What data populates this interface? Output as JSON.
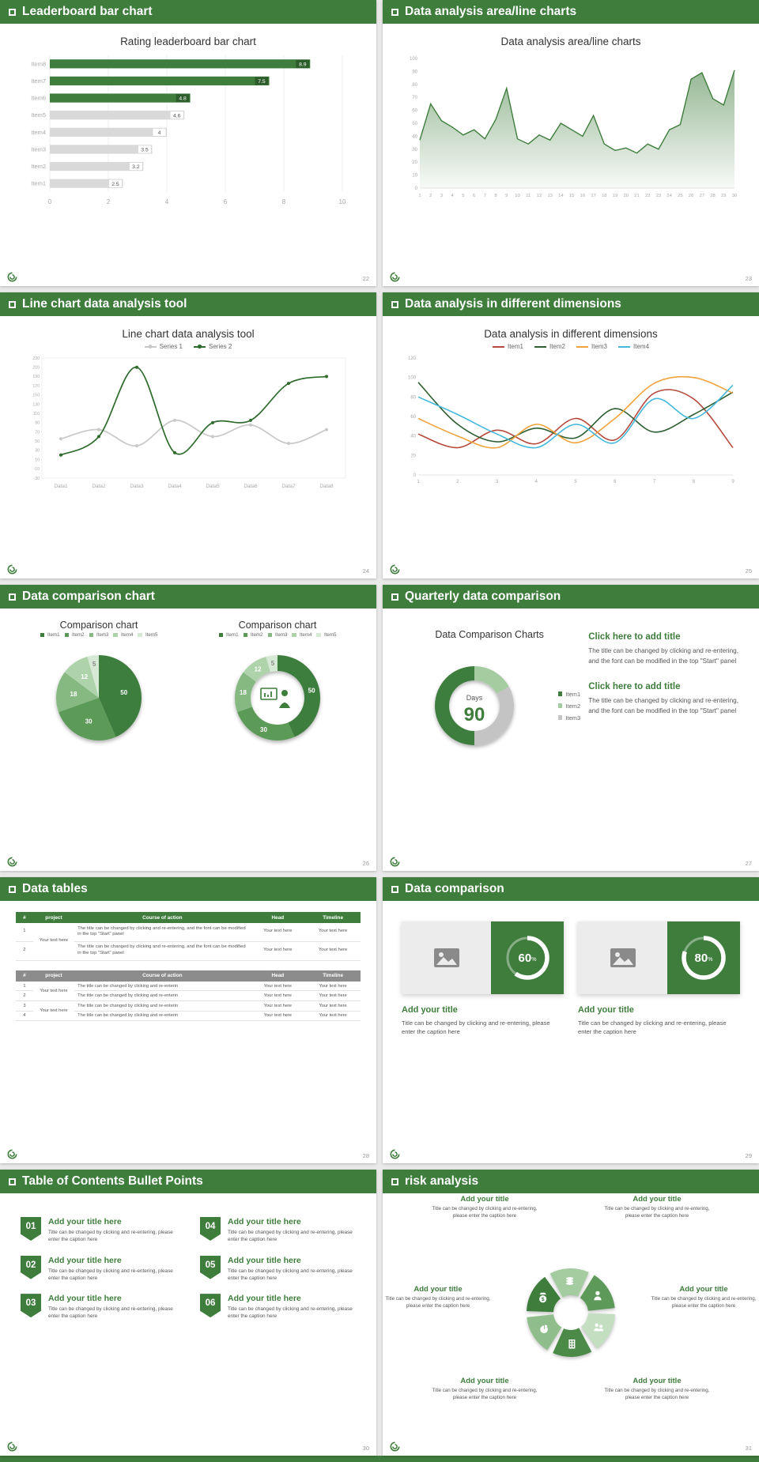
{
  "accent": "#3e7d3c",
  "slides": [
    {
      "id": "leaderboard-bar-chart",
      "header": "Leaderboard bar chart",
      "page_number": "22",
      "title": "Rating leaderboard bar chart",
      "chart_data": {
        "type": "bar",
        "orientation": "horizontal",
        "categories": [
          "Item8",
          "Item7",
          "Item6",
          "Item5",
          "Item4",
          "Item3",
          "Item2",
          "Item1"
        ],
        "values": [
          8.9,
          7.5,
          4.8,
          4.6,
          4,
          3.5,
          3.2,
          2.5
        ],
        "highlight_count": 3,
        "bar_color": "#3e7d3c",
        "muted_bar_color": "#d9d9d9",
        "xlim": [
          0,
          10
        ],
        "xticks": [
          0,
          2,
          4,
          6,
          8,
          10
        ]
      }
    },
    {
      "id": "area-line-charts",
      "header": "Data analysis area/line charts",
      "page_number": "23",
      "title": "Data analysis area/line charts",
      "chart_data": {
        "type": "area",
        "x": [
          1,
          2,
          3,
          4,
          5,
          6,
          7,
          8,
          9,
          10,
          11,
          12,
          13,
          14,
          15,
          16,
          17,
          18,
          19,
          20,
          21,
          22,
          23,
          24,
          25,
          26,
          27,
          28,
          29,
          30
        ],
        "values": [
          37,
          65,
          52,
          47,
          41,
          45,
          38,
          53,
          77,
          38,
          34,
          41,
          37,
          50,
          45,
          40,
          56,
          34,
          29,
          31,
          27,
          34,
          30,
          45,
          49,
          84,
          89,
          69,
          64,
          91
        ],
        "ylim": [
          0,
          100
        ],
        "ytick_step": 10,
        "line_color": "#3e7d3c"
      }
    },
    {
      "id": "line-chart-tool",
      "header": "Line chart data analysis tool",
      "page_number": "24",
      "title": "Line chart data analysis tool",
      "chart_data": {
        "type": "line",
        "categories": [
          "Data1",
          "Data2",
          "Data3",
          "Data4",
          "Data5",
          "Data6",
          "Data7",
          "Data8"
        ],
        "yticks": [
          230,
          210,
          190,
          170,
          150,
          130,
          110,
          90,
          70,
          50,
          30,
          10,
          -10,
          -30
        ],
        "series": [
          {
            "name": "Series 1",
            "color": "#c8c8c8",
            "values": [
              55,
              75,
              40,
              95,
              60,
              85,
              45,
              75
            ]
          },
          {
            "name": "Series 2",
            "color": "#2e6b2c",
            "values": [
              20,
              60,
              210,
              25,
              90,
              95,
              175,
              190
            ]
          }
        ]
      }
    },
    {
      "id": "different-dimensions",
      "header": "Data analysis in different dimensions",
      "page_number": "25",
      "title": "Data analysis in different dimensions",
      "chart_data": {
        "type": "line",
        "x": [
          1,
          2,
          3,
          4,
          5,
          6,
          7,
          8,
          9
        ],
        "ylim": [
          0,
          120
        ],
        "ytick_step": 20,
        "series": [
          {
            "name": "Item1",
            "color": "#b5493c",
            "values": [
              42,
              28,
              46,
              32,
              58,
              36,
              84,
              78,
              28
            ]
          },
          {
            "name": "Item2",
            "color": "#2e5e31",
            "values": [
              95,
              52,
              34,
              48,
              38,
              68,
              44,
              62,
              85
            ]
          },
          {
            "name": "Item3",
            "color": "#efa33d",
            "values": [
              58,
              40,
              28,
              52,
              33,
              58,
              94,
              100,
              84
            ]
          },
          {
            "name": "Item4",
            "color": "#46b8dc",
            "values": [
              80,
              62,
              42,
              28,
              52,
              33,
              78,
              58,
              92
            ]
          }
        ]
      }
    },
    {
      "id": "data-comparison-chart",
      "header": "Data comparison chart",
      "page_number": "26",
      "charts": [
        {
          "title": "Comparison chart",
          "type": "pie",
          "labels": [
            "Item1",
            "Item2",
            "Item3",
            "Item4",
            "Item5"
          ],
          "values": [
            50,
            30,
            18,
            12,
            5
          ],
          "colors": [
            "#3e7d3c",
            "#5c9a58",
            "#85b981",
            "#aed3aa",
            "#d6e9d4"
          ]
        },
        {
          "title": "Comparison chart",
          "type": "donut",
          "labels": [
            "Item1",
            "Item2",
            "Item3",
            "Item4",
            "Item5"
          ],
          "values": [
            50,
            30,
            18,
            12,
            5
          ],
          "colors": [
            "#3e7d3c",
            "#5c9a58",
            "#85b981",
            "#aed3aa",
            "#d6e9d4"
          ],
          "center_icon": "presenter-icon"
        }
      ]
    },
    {
      "id": "quarterly-data-comparison",
      "header": "Quarterly data comparison",
      "page_number": "27",
      "left": {
        "title": "Data Comparison Charts",
        "chart_data": {
          "type": "donut",
          "labels": [
            "Item1",
            "Item2",
            "Item3"
          ],
          "values": [
            50,
            17,
            33
          ],
          "colors": [
            "#3e7d3c",
            "#a5cba1",
            "#c4c4c4"
          ],
          "start_angle": 180,
          "center_label": "Days",
          "center_value": "90"
        }
      },
      "blocks": [
        {
          "title": "Click here to add title",
          "body": "The title can be changed by clicking and re-entering, and the font can be modified in the top \"Start\" panel"
        },
        {
          "title": "Click here to add title",
          "body": "The title can be changed by clicking and re-entering, and the font can be modified in the top \"Start\" panel"
        }
      ]
    },
    {
      "id": "data-tables",
      "header": "Data tables",
      "page_number": "28",
      "tables": [
        {
          "header_bg": "#3e7d3c",
          "columns": [
            "#",
            "project",
            "Course of action",
            "Head",
            "Timeline"
          ],
          "rows": [
            [
              "1",
              "Your text here",
              "The title can be changed by clicking and re-entering, and the font can be modified in the top \"Start\" panel",
              "Your text here",
              "Your text here"
            ],
            [
              "2",
              "",
              "The title can be changed by clicking and re-entering, and the font can be modified in the top \"Start\" panel",
              "Your text here",
              "Your text here"
            ]
          ]
        },
        {
          "header_bg": "#8c8c8c",
          "columns": [
            "#",
            "project",
            "Course of action",
            "Head",
            "Timeline"
          ],
          "rows": [
            [
              "1",
              "Your text here",
              "The title can be changed by clicking and re-enterin",
              "Your text here",
              "Your text here"
            ],
            [
              "2",
              "",
              "The title can be changed by clicking and re-enterin",
              "Your text here",
              "Your text here"
            ],
            [
              "3",
              "Your text here",
              "The title can be changed by clicking and re-enterin",
              "Your text here",
              "Your text here"
            ],
            [
              "4",
              "",
              "The title can be changed by clicking and re-enterin",
              "Your text here",
              "Your text here"
            ]
          ]
        }
      ]
    },
    {
      "id": "data-comparison-cards",
      "header": "Data comparison",
      "page_number": "29",
      "cards": [
        {
          "percent": 60,
          "title": "Add your title",
          "body": "Title can be changed by clicking and re-entering, please enter the caption here"
        },
        {
          "percent": 80,
          "title": "Add your title",
          "body": "Title can be changed by clicking and re-entering, please enter the caption here"
        }
      ]
    },
    {
      "id": "toc-bullet-points",
      "header": "Table of Contents Bullet Points",
      "page_number": "30",
      "items": [
        {
          "num": "01",
          "title": "Add your title here",
          "body": "Title can be changed by clicking and re-entering, please enter the caption here"
        },
        {
          "num": "02",
          "title": "Add your title here",
          "body": "Title can be changed by clicking and re-entering, please enter the caption here"
        },
        {
          "num": "03",
          "title": "Add your title here",
          "body": "Title can be changed by clicking and re-entering, please enter the caption here"
        },
        {
          "num": "04",
          "title": "Add your title here",
          "body": "Title can be changed by clicking and re-entering, please enter the caption here"
        },
        {
          "num": "05",
          "title": "Add your title here",
          "body": "Title can be changed by clicking and re-entering, please enter the caption here"
        },
        {
          "num": "06",
          "title": "Add your title here",
          "body": "Title can be changed by clicking and re-entering, please enter the caption here"
        }
      ]
    },
    {
      "id": "risk-analysis",
      "header": "risk analysis",
      "page_number": "31",
      "wheel_colors": [
        "#3e7d3c",
        "#a5cba1",
        "#5d9a59",
        "#c4dec1",
        "#4c8a48",
        "#8fbd8b"
      ],
      "items": [
        {
          "icon": "money-bag",
          "title": "Add your title",
          "body": "Title can be changed by clicking and re-entering, please enter the caption here"
        },
        {
          "icon": "coins",
          "title": "Add your title",
          "body": "Title can be changed by clicking and re-entering, please enter the caption here"
        },
        {
          "icon": "person",
          "title": "Add your title",
          "body": "Title can be changed by clicking and re-entering, please enter the caption here"
        },
        {
          "icon": "people",
          "title": "Add your title",
          "body": "Title can be changed by clicking and re-entering, please enter the caption here"
        },
        {
          "icon": "building",
          "title": "Add your title",
          "body": "Title can be changed by clicking and re-entering, please enter the caption here"
        },
        {
          "icon": "pie-chart",
          "title": "Add your title",
          "body": "Title can be changed by clicking and re-entering, please enter the caption here"
        }
      ]
    }
  ]
}
